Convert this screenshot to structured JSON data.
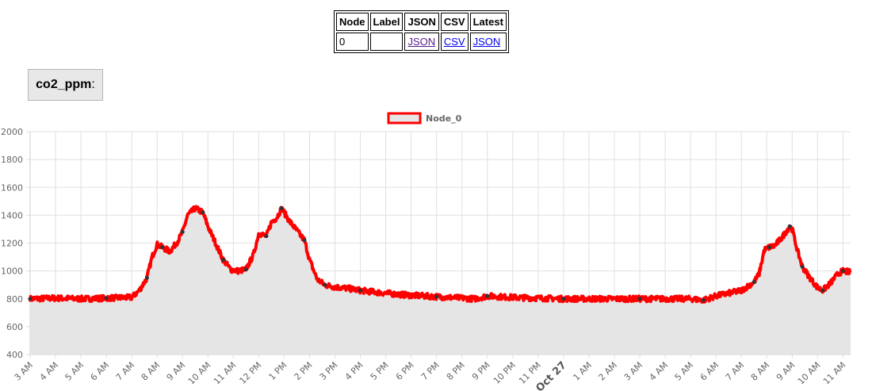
{
  "table": {
    "headers": [
      "Node",
      "Label",
      "JSON",
      "CSV",
      "Latest"
    ],
    "row": {
      "node": "0",
      "label": "",
      "json": "JSON",
      "csv": "CSV",
      "latest": "JSON"
    }
  },
  "sensor": {
    "name": "co2_ppm",
    "suffix": ":"
  },
  "colors": {
    "line": "#ff0000",
    "fill": "#e5e5e5",
    "grid": "#e0e0e0",
    "marker": "#333333"
  },
  "chart_data": {
    "type": "area",
    "ylim": [
      400,
      2000
    ],
    "yticks": [
      400,
      600,
      800,
      1000,
      1200,
      1400,
      1600,
      1800,
      2000
    ],
    "xlim": [
      3.0,
      35.3
    ],
    "x_unit": "hours from midnight of first day",
    "xticks": [
      {
        "x": 3,
        "label": "3 AM"
      },
      {
        "x": 4,
        "label": "4 AM"
      },
      {
        "x": 5,
        "label": "5 AM"
      },
      {
        "x": 6,
        "label": "6 AM"
      },
      {
        "x": 7,
        "label": "7 AM"
      },
      {
        "x": 8,
        "label": "8 AM"
      },
      {
        "x": 9,
        "label": "9 AM"
      },
      {
        "x": 10,
        "label": "10 AM"
      },
      {
        "x": 11,
        "label": "11 AM"
      },
      {
        "x": 12,
        "label": "12 PM"
      },
      {
        "x": 13,
        "label": "1 PM"
      },
      {
        "x": 14,
        "label": "2 PM"
      },
      {
        "x": 15,
        "label": "3 PM"
      },
      {
        "x": 16,
        "label": "4 PM"
      },
      {
        "x": 17,
        "label": "5 PM"
      },
      {
        "x": 18,
        "label": "6 PM"
      },
      {
        "x": 19,
        "label": "7 PM"
      },
      {
        "x": 20,
        "label": "8 PM"
      },
      {
        "x": 21,
        "label": "9 PM"
      },
      {
        "x": 22,
        "label": "10 PM"
      },
      {
        "x": 23,
        "label": "11 PM"
      },
      {
        "x": 24,
        "label": "Oct 27",
        "bold": true
      },
      {
        "x": 25,
        "label": "1 AM"
      },
      {
        "x": 26,
        "label": "2 AM"
      },
      {
        "x": 27,
        "label": "3 AM"
      },
      {
        "x": 28,
        "label": "4 AM"
      },
      {
        "x": 29,
        "label": "5 AM"
      },
      {
        "x": 30,
        "label": "6 AM"
      },
      {
        "x": 31,
        "label": "7 AM"
      },
      {
        "x": 32,
        "label": "8 AM"
      },
      {
        "x": 33,
        "label": "9 AM"
      },
      {
        "x": 34,
        "label": "10 AM"
      },
      {
        "x": 35,
        "label": "11 AM"
      }
    ],
    "legend": {
      "position": "top-center"
    },
    "grid": true,
    "series": [
      {
        "name": "Node_0",
        "x": [
          3.0,
          4.0,
          5.0,
          6.0,
          7.0,
          7.3,
          7.6,
          7.8,
          8.0,
          8.2,
          8.5,
          8.8,
          9.0,
          9.2,
          9.5,
          9.8,
          10.0,
          10.3,
          10.6,
          10.9,
          11.2,
          11.5,
          11.8,
          12.0,
          12.3,
          12.5,
          12.7,
          12.9,
          13.2,
          13.5,
          13.8,
          14.0,
          14.3,
          14.6,
          15.0,
          15.5,
          16.0,
          17.0,
          18.0,
          19.0,
          20.0,
          20.5,
          21.0,
          22.0,
          23.0,
          24.0,
          25.0,
          26.0,
          27.0,
          28.0,
          29.0,
          29.5,
          30.0,
          31.0,
          31.5,
          31.7,
          31.9,
          32.1,
          32.3,
          32.6,
          32.9,
          33.0,
          33.2,
          33.4,
          33.7,
          34.0,
          34.2,
          34.5,
          34.8,
          35.0,
          35.3
        ],
        "values": [
          800,
          805,
          800,
          805,
          810,
          860,
          950,
          1100,
          1190,
          1170,
          1140,
          1210,
          1280,
          1400,
          1450,
          1420,
          1320,
          1200,
          1080,
          1010,
          1000,
          1010,
          1120,
          1270,
          1250,
          1350,
          1380,
          1450,
          1360,
          1290,
          1220,
          1080,
          940,
          900,
          885,
          875,
          860,
          840,
          825,
          815,
          805,
          800,
          820,
          810,
          805,
          800,
          800,
          800,
          800,
          800,
          800,
          790,
          820,
          860,
          920,
          980,
          1150,
          1170,
          1180,
          1240,
          1320,
          1300,
          1150,
          1030,
          950,
          880,
          860,
          910,
          980,
          1000,
          990
        ]
      }
    ]
  }
}
